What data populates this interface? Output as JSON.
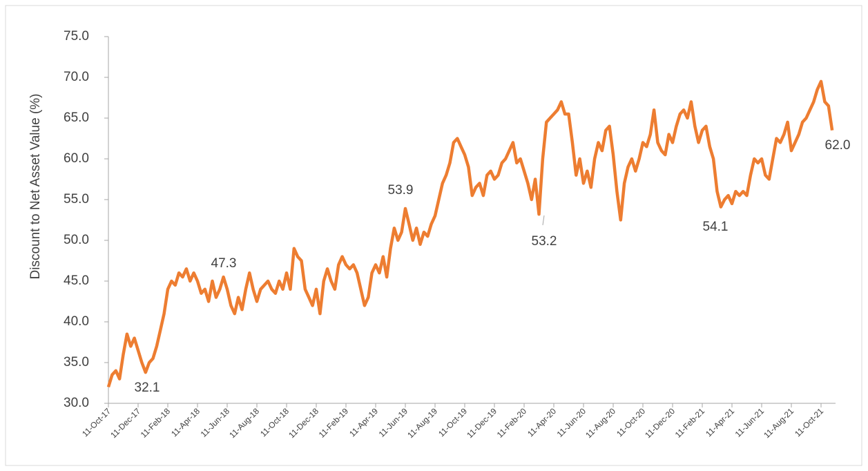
{
  "chart_data": {
    "type": "line",
    "ylabel": "Discount to Net Asset Value (%)",
    "xticks": [
      "11-Oct-17",
      "11-Dec-17",
      "11-Feb-18",
      "11-Apr-18",
      "11-Jun-18",
      "11-Aug-18",
      "11-Oct-18",
      "11-Dec-18",
      "11-Feb-19",
      "11-Apr-19",
      "11-Jun-19",
      "11-Aug-19",
      "11-Oct-19",
      "11-Dec-19",
      "11-Feb-20",
      "11-Apr-20",
      "11-Jun-20",
      "11-Aug-20",
      "11-Oct-20",
      "11-Dec-20",
      "11-Feb-21",
      "11-Apr-21",
      "11-Jun-21",
      "11-Aug-21",
      "11-Oct-21"
    ],
    "ylim": [
      30,
      75
    ],
    "yticks": [
      {
        "value": 30,
        "label": "30.0"
      },
      {
        "value": 35,
        "label": "35.0"
      },
      {
        "value": 40,
        "label": "40.0"
      },
      {
        "value": 45,
        "label": "45.0"
      },
      {
        "value": 50,
        "label": "50.0"
      },
      {
        "value": 55,
        "label": "55.0"
      },
      {
        "value": 60,
        "label": "60.0"
      },
      {
        "value": 65,
        "label": "65.0"
      },
      {
        "value": 70,
        "label": "70.0"
      },
      {
        "value": 75,
        "label": "75.0"
      }
    ],
    "series": [
      {
        "color": "#ed7d31",
        "values": [
          32,
          33.5,
          34,
          33,
          36,
          38.5,
          37,
          38,
          36.5,
          35,
          33.8,
          35,
          35.5,
          37,
          39,
          41,
          44,
          45,
          44.5,
          46,
          45.5,
          46.5,
          45,
          46,
          45,
          43.5,
          44,
          42.5,
          45,
          43,
          44,
          45.5,
          44,
          42,
          41,
          43,
          41.5,
          44,
          46,
          44,
          42.5,
          44,
          44.5,
          45,
          44,
          43.5,
          45,
          44,
          46,
          44,
          49,
          48,
          47.5,
          44,
          43,
          42,
          44,
          41,
          45,
          46.5,
          45,
          44,
          47,
          48,
          47,
          46.5,
          47,
          46,
          44,
          42,
          43,
          46,
          47,
          46,
          48,
          45.5,
          49,
          51.5,
          50,
          51,
          53.9,
          52,
          50,
          51.5,
          49.5,
          51,
          50.5,
          52,
          53,
          55,
          57,
          58,
          59.5,
          62,
          62.5,
          61.5,
          60.5,
          59,
          55.5,
          56.5,
          57,
          55.5,
          58,
          58.5,
          57.5,
          58,
          59.5,
          60,
          61,
          62,
          59.5,
          60,
          58.5,
          57,
          55,
          57.5,
          53.2,
          60,
          64.5,
          65,
          65.5,
          66,
          67,
          65.5,
          65.5,
          62,
          58,
          60,
          57,
          58.5,
          56.5,
          60,
          62,
          61,
          63.5,
          64,
          60.5,
          56,
          52.5,
          57,
          59,
          60,
          58.5,
          60,
          62,
          61.5,
          63,
          66,
          62,
          61,
          60.5,
          63,
          62,
          64,
          65.5,
          66,
          65,
          67,
          64,
          62,
          63.5,
          64,
          61.5,
          60,
          56,
          54.1,
          55,
          55.5,
          54.5,
          56,
          55.5,
          56,
          55.5,
          58,
          60,
          59.5,
          60,
          58,
          57.5,
          60,
          62.5,
          62,
          63,
          64.5,
          61,
          62,
          63,
          64.5,
          65,
          66,
          67,
          68.5,
          69.5,
          67,
          66.5,
          63.5
        ]
      }
    ],
    "annotations": [
      "32.1",
      "47.3",
      "53.9",
      "53.2",
      "54.1",
      "62.0"
    ]
  }
}
